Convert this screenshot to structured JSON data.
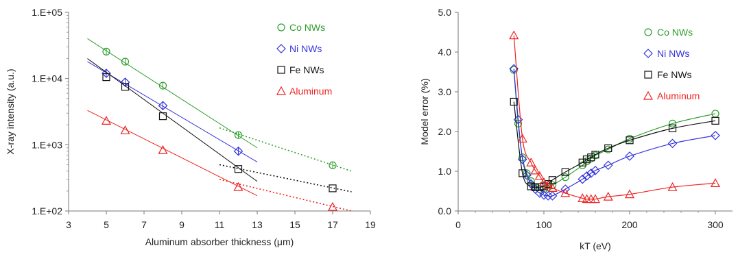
{
  "chart_data": [
    {
      "type": "scatter",
      "xlabel": "Aluminum absorber thickness (μm)",
      "ylabel": "X-ray intensity (a.u.)",
      "xlim": [
        3,
        19
      ],
      "ylim": [
        100,
        100000
      ],
      "yscale": "log",
      "grid": false,
      "legend_position": "top-right",
      "x_ticks": [
        "3",
        "5",
        "7",
        "9",
        "11",
        "13",
        "15",
        "17",
        "19"
      ],
      "y_ticks": [
        "1.E+02",
        "1.E+03",
        "1.E+04",
        "1.E+05"
      ],
      "series": [
        {
          "name": "Co NWs",
          "color": "#2e9e2e",
          "marker": "circle",
          "x": [
            5,
            6,
            8,
            12,
            17
          ],
          "y": [
            25500,
            18000,
            7800,
            1400,
            490
          ],
          "fit": {
            "x0": 4,
            "x1": 13,
            "y0": 40000,
            "y1": 900
          },
          "extrapolation": {
            "x0": 11,
            "x1": 18,
            "y0": 1800,
            "y1": 400
          }
        },
        {
          "name": "Ni NWs",
          "color": "#3333dd",
          "marker": "diamond",
          "x": [
            5,
            6,
            8,
            12
          ],
          "y": [
            12000,
            8800,
            3900,
            800
          ],
          "fit": {
            "x0": 4,
            "x1": 13,
            "y0": 18000,
            "y1": 550
          }
        },
        {
          "name": "Fe NWs",
          "color": "#111111",
          "marker": "square",
          "x": [
            5,
            6,
            8,
            12,
            17
          ],
          "y": [
            10500,
            7500,
            2700,
            430,
            220
          ],
          "fit": {
            "x0": 4,
            "x1": 13,
            "y0": 20000,
            "y1": 280
          },
          "extrapolation": {
            "x0": 11,
            "x1": 18,
            "y0": 500,
            "y1": 195
          }
        },
        {
          "name": "Aluminum",
          "color": "#ee2222",
          "marker": "triangle",
          "x": [
            5,
            6,
            8,
            12,
            17
          ],
          "y": [
            2300,
            1650,
            830,
            230,
            115
          ],
          "fit": {
            "x0": 4,
            "x1": 13,
            "y0": 3300,
            "y1": 170
          },
          "extrapolation": {
            "x0": 11,
            "x1": 18,
            "y0": 300,
            "y1": 100
          }
        }
      ]
    },
    {
      "type": "line",
      "xlabel": "kT (eV)",
      "ylabel": "Model error (%)",
      "xlim": [
        0,
        320
      ],
      "ylim": [
        0,
        5
      ],
      "grid": false,
      "legend_position": "top-right",
      "x_ticks": [
        "0",
        "100",
        "200",
        "300"
      ],
      "y_ticks": [
        "0.0",
        "1.0",
        "2.0",
        "3.0",
        "4.0",
        "5.0"
      ],
      "series": [
        {
          "name": "Co NWs",
          "color": "#2e9e2e",
          "marker": "circle",
          "x": [
            65,
            70,
            75,
            80,
            85,
            90,
            95,
            100,
            105,
            110,
            125,
            145,
            150,
            155,
            160,
            175,
            200,
            250,
            300
          ],
          "y": [
            3.55,
            2.2,
            1.35,
            0.95,
            0.75,
            0.6,
            0.55,
            0.55,
            0.6,
            0.65,
            0.85,
            1.15,
            1.25,
            1.32,
            1.4,
            1.55,
            1.82,
            2.2,
            2.45
          ]
        },
        {
          "name": "Ni NWs",
          "color": "#3333dd",
          "marker": "diamond",
          "x": [
            65,
            70,
            75,
            80,
            85,
            90,
            95,
            100,
            105,
            110,
            125,
            145,
            150,
            155,
            160,
            175,
            200,
            250,
            300
          ],
          "y": [
            3.58,
            2.3,
            1.3,
            0.9,
            0.68,
            0.55,
            0.45,
            0.4,
            0.38,
            0.38,
            0.55,
            0.8,
            0.88,
            0.95,
            1.02,
            1.15,
            1.38,
            1.7,
            1.9
          ]
        },
        {
          "name": "Fe NWs",
          "color": "#111111",
          "marker": "square",
          "x": [
            65,
            75,
            85,
            90,
            95,
            100,
            105,
            110,
            125,
            145,
            150,
            155,
            160,
            175,
            200,
            250,
            300
          ],
          "y": [
            2.75,
            0.95,
            0.62,
            0.6,
            0.6,
            0.62,
            0.68,
            0.78,
            0.98,
            1.22,
            1.3,
            1.35,
            1.42,
            1.58,
            1.78,
            2.08,
            2.27
          ]
        },
        {
          "name": "Aluminum",
          "color": "#ee2222",
          "marker": "triangle",
          "x": [
            65,
            75,
            85,
            90,
            95,
            100,
            105,
            110,
            125,
            145,
            150,
            155,
            160,
            175,
            200,
            250,
            300
          ],
          "y": [
            4.42,
            1.82,
            1.22,
            1.02,
            0.88,
            0.72,
            0.65,
            0.58,
            0.45,
            0.32,
            0.3,
            0.3,
            0.3,
            0.36,
            0.42,
            0.6,
            0.7
          ]
        }
      ]
    }
  ]
}
